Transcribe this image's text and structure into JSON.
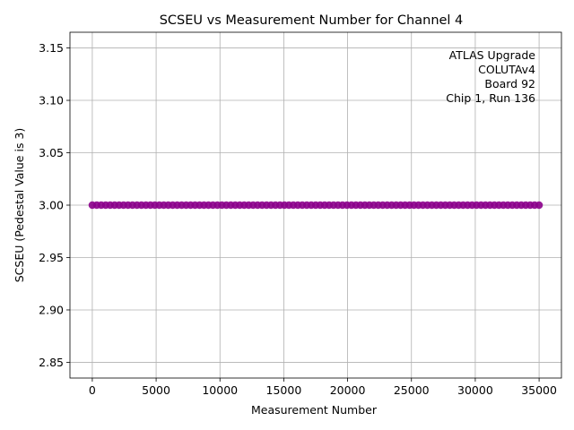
{
  "chart_data": {
    "type": "scatter",
    "title": "SCSEU vs Measurement Number for Channel 4",
    "xlabel": "Measurement Number",
    "ylabel": "SCSEU (Pedestal Value is 3)",
    "xlim": [
      -1750,
      36750
    ],
    "ylim": [
      2.835,
      3.165
    ],
    "xticks": [
      0,
      5000,
      10000,
      15000,
      20000,
      25000,
      30000,
      35000
    ],
    "xtick_labels": [
      "0",
      "5000",
      "10000",
      "15000",
      "20000",
      "25000",
      "30000",
      "35000"
    ],
    "yticks": [
      2.85,
      2.9,
      2.95,
      3.0,
      3.05,
      3.1,
      3.15
    ],
    "ytick_labels": [
      "2.85",
      "2.90",
      "2.95",
      "3.00",
      "3.05",
      "3.10",
      "3.15"
    ],
    "grid": true,
    "series": [
      {
        "color": "#8b008b",
        "x_range": [
          0,
          35000
        ],
        "point_count": 35000,
        "y_constant": 3.0
      }
    ],
    "annotation": {
      "position": "top-right",
      "lines": [
        "ATLAS Upgrade",
        "COLUTAv4",
        "Board 92",
        "Chip 1, Run 136"
      ]
    }
  }
}
